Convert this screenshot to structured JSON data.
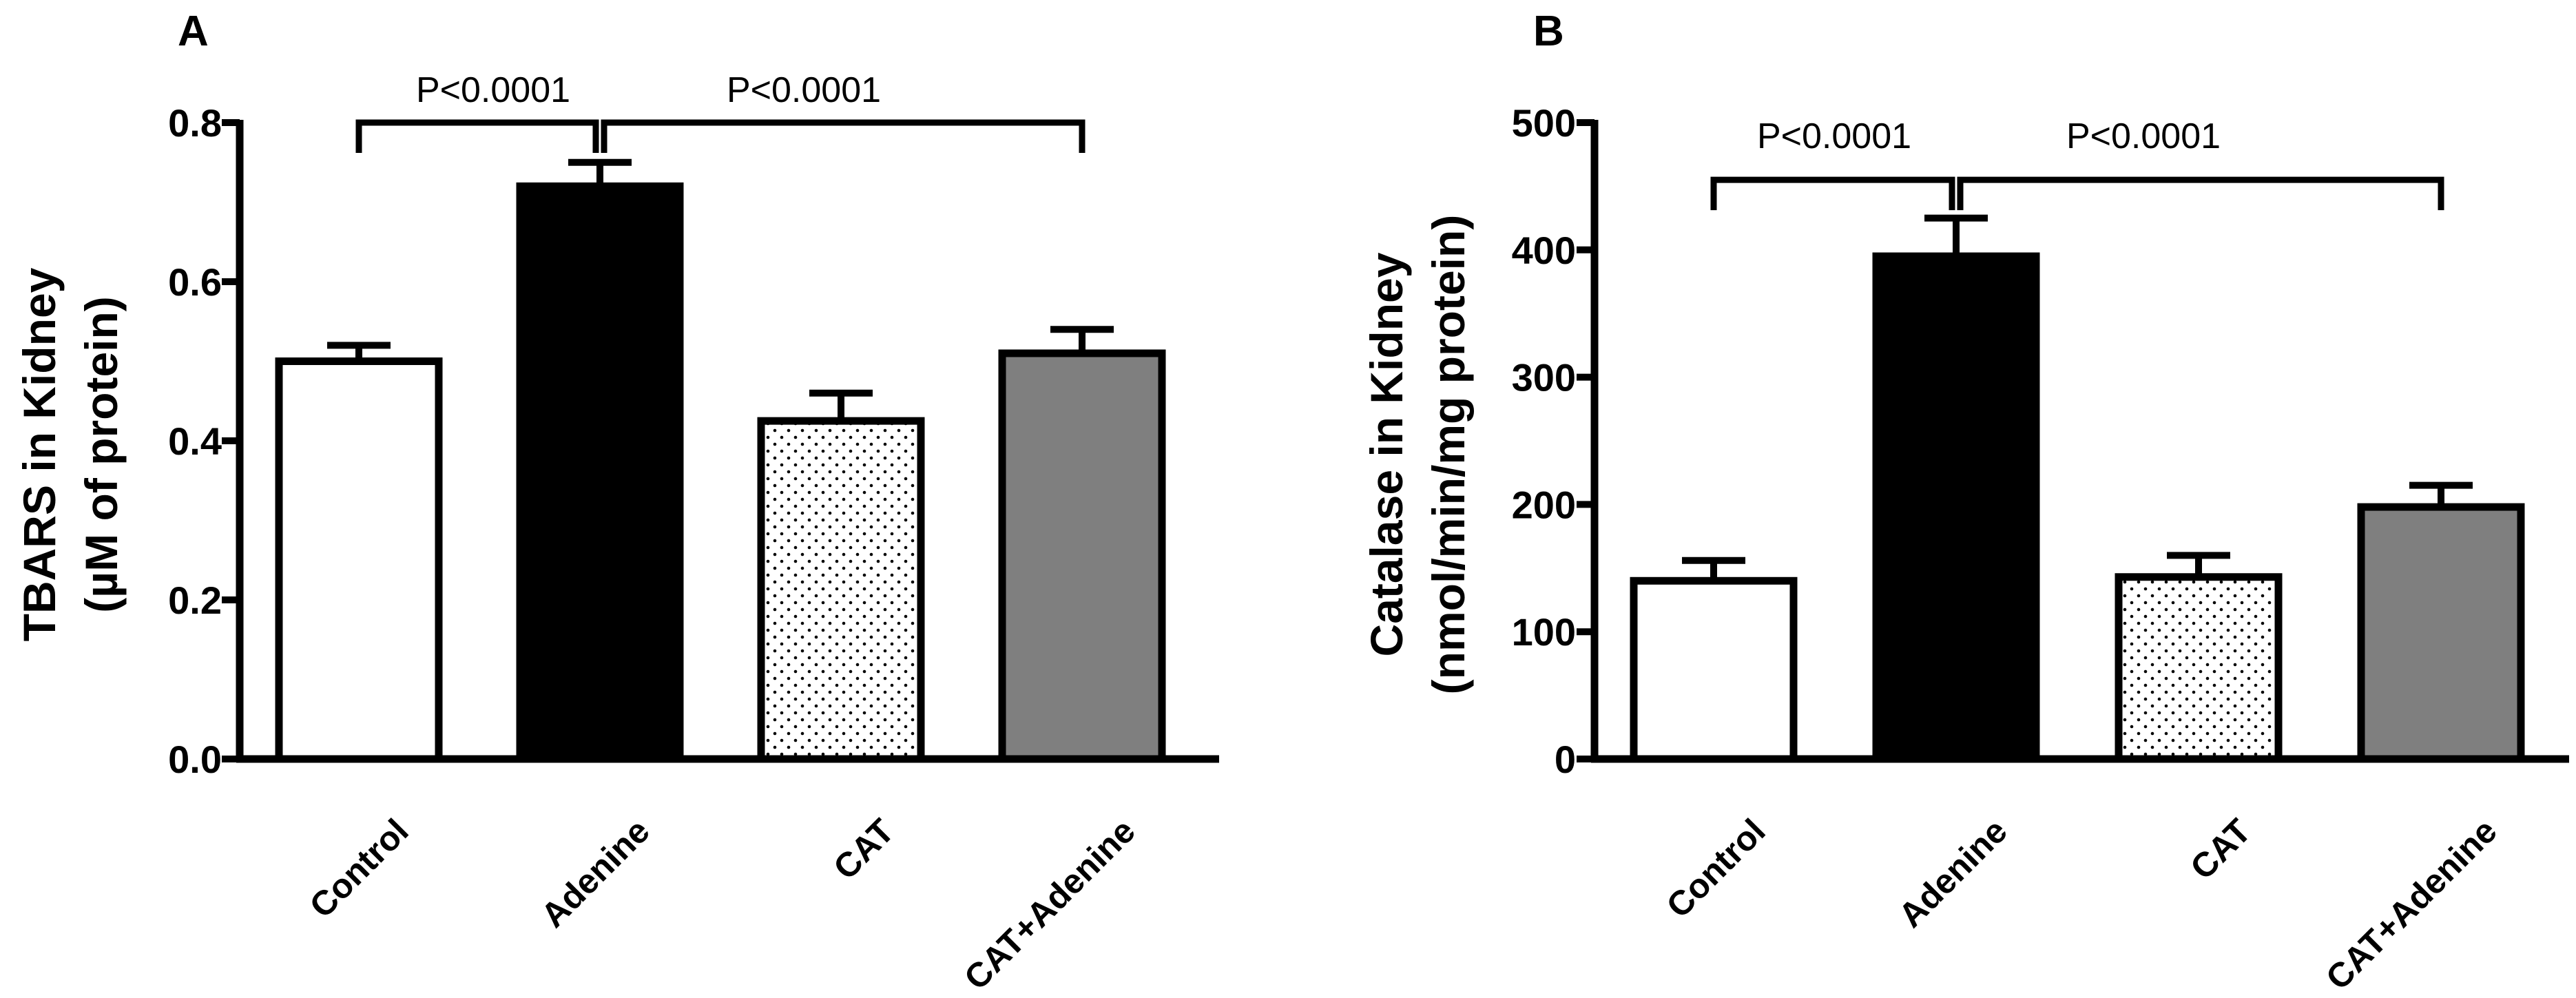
{
  "chart_data": [
    {
      "type": "bar",
      "panel": "A",
      "categories": [
        "Control",
        "Adenine",
        "CAT",
        "CAT+Adenine"
      ],
      "values": [
        0.5,
        0.72,
        0.425,
        0.51
      ],
      "errors": [
        0.02,
        0.03,
        0.035,
        0.03
      ],
      "ylabel_line1": "TBARS in Kidney",
      "ylabel_line2": "(µM of protein)",
      "ylim": [
        0,
        0.8
      ],
      "yticks": [
        0.0,
        0.2,
        0.4,
        0.6,
        0.8
      ],
      "ytick_labels": [
        "0.0",
        "0.2",
        "0.4",
        "0.6",
        "0.8"
      ],
      "fills": [
        "white",
        "black",
        "dots",
        "gray"
      ],
      "significance": [
        {
          "from": 0,
          "to": 1,
          "label": "P<0.0001",
          "y": 0.8
        },
        {
          "from": 1,
          "to": 3,
          "label": "P<0.0001",
          "y": 0.8
        }
      ]
    },
    {
      "type": "bar",
      "panel": "B",
      "categories": [
        "Control",
        "Adenine",
        "CAT",
        "CAT+Adenine"
      ],
      "values": [
        140,
        395,
        143,
        198
      ],
      "errors": [
        16,
        30,
        17,
        17
      ],
      "ylabel_line1": "Catalase in Kidney",
      "ylabel_line2": "(nmol/min/mg protein)",
      "ylim": [
        0,
        500
      ],
      "yticks": [
        0,
        100,
        200,
        300,
        400,
        500
      ],
      "ytick_labels": [
        "0",
        "100",
        "200",
        "300",
        "400",
        "500"
      ],
      "fills": [
        "white",
        "black",
        "dots",
        "gray"
      ],
      "significance": [
        {
          "from": 0,
          "to": 1,
          "label": "P<0.0001",
          "y": 455
        },
        {
          "from": 1,
          "to": 3,
          "label": "P<0.0001",
          "y": 455
        }
      ]
    }
  ],
  "colors": {
    "axis": "#000000",
    "white_bar": "#ffffff",
    "black_bar": "#000000",
    "gray_bar": "#7f7f7f",
    "dot": "#000000"
  }
}
